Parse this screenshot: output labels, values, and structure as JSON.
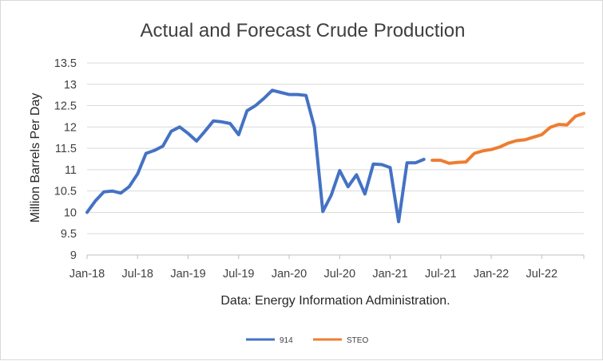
{
  "chart_data": {
    "type": "line",
    "title": "Actual and Forecast Crude Production",
    "ylabel": "Million Barrels Per Day",
    "xlabel": "Data: Energy Information Administration.",
    "ylim": [
      9,
      13.5
    ],
    "yticks": [
      "9",
      "9.5",
      "10",
      "10.5",
      "11",
      "11.5",
      "12",
      "12.5",
      "13",
      "13.5"
    ],
    "xlim": [
      "2018-01",
      "2022-12"
    ],
    "xticks": [
      "Jan-18",
      "Jul-18",
      "Jan-19",
      "Jul-19",
      "Jan-20",
      "Jul-20",
      "Jan-21",
      "Jul-21",
      "Jan-22",
      "Jul-22"
    ],
    "grid": "horizontal",
    "legend_position": "bottom",
    "series": [
      {
        "name": "914",
        "color": "#4472C4",
        "x": [
          "2018-01",
          "2018-02",
          "2018-03",
          "2018-04",
          "2018-05",
          "2018-06",
          "2018-07",
          "2018-08",
          "2018-09",
          "2018-10",
          "2018-11",
          "2018-12",
          "2019-01",
          "2019-02",
          "2019-03",
          "2019-04",
          "2019-05",
          "2019-06",
          "2019-07",
          "2019-08",
          "2019-09",
          "2019-10",
          "2019-11",
          "2019-12",
          "2020-01",
          "2020-02",
          "2020-03",
          "2020-04",
          "2020-05",
          "2020-06",
          "2020-07",
          "2020-08",
          "2020-09",
          "2020-10",
          "2020-11",
          "2020-12",
          "2021-01",
          "2021-02",
          "2021-03",
          "2021-04",
          "2021-05"
        ],
        "values": [
          10.0,
          10.27,
          10.48,
          10.5,
          10.45,
          10.6,
          10.9,
          11.38,
          11.45,
          11.55,
          11.9,
          12.0,
          11.85,
          11.67,
          11.9,
          12.14,
          12.12,
          12.08,
          11.82,
          12.38,
          12.5,
          12.67,
          12.86,
          12.81,
          12.76,
          12.76,
          12.74,
          12.0,
          10.02,
          10.4,
          10.98,
          10.6,
          10.88,
          10.43,
          11.13,
          11.12,
          11.05,
          9.78,
          11.16,
          11.16,
          11.24
        ]
      },
      {
        "name": "STEO",
        "color": "#ED7D31",
        "x": [
          "2021-06",
          "2021-07",
          "2021-08",
          "2021-09",
          "2021-10",
          "2021-11",
          "2021-12",
          "2022-01",
          "2022-02",
          "2022-03",
          "2022-04",
          "2022-05",
          "2022-06",
          "2022-07",
          "2022-08",
          "2022-09",
          "2022-10",
          "2022-11",
          "2022-12"
        ],
        "values": [
          11.22,
          11.22,
          11.15,
          11.17,
          11.18,
          11.38,
          11.44,
          11.47,
          11.53,
          11.62,
          11.68,
          11.7,
          11.76,
          11.82,
          11.99,
          12.06,
          12.05,
          12.25,
          12.32
        ]
      }
    ]
  }
}
